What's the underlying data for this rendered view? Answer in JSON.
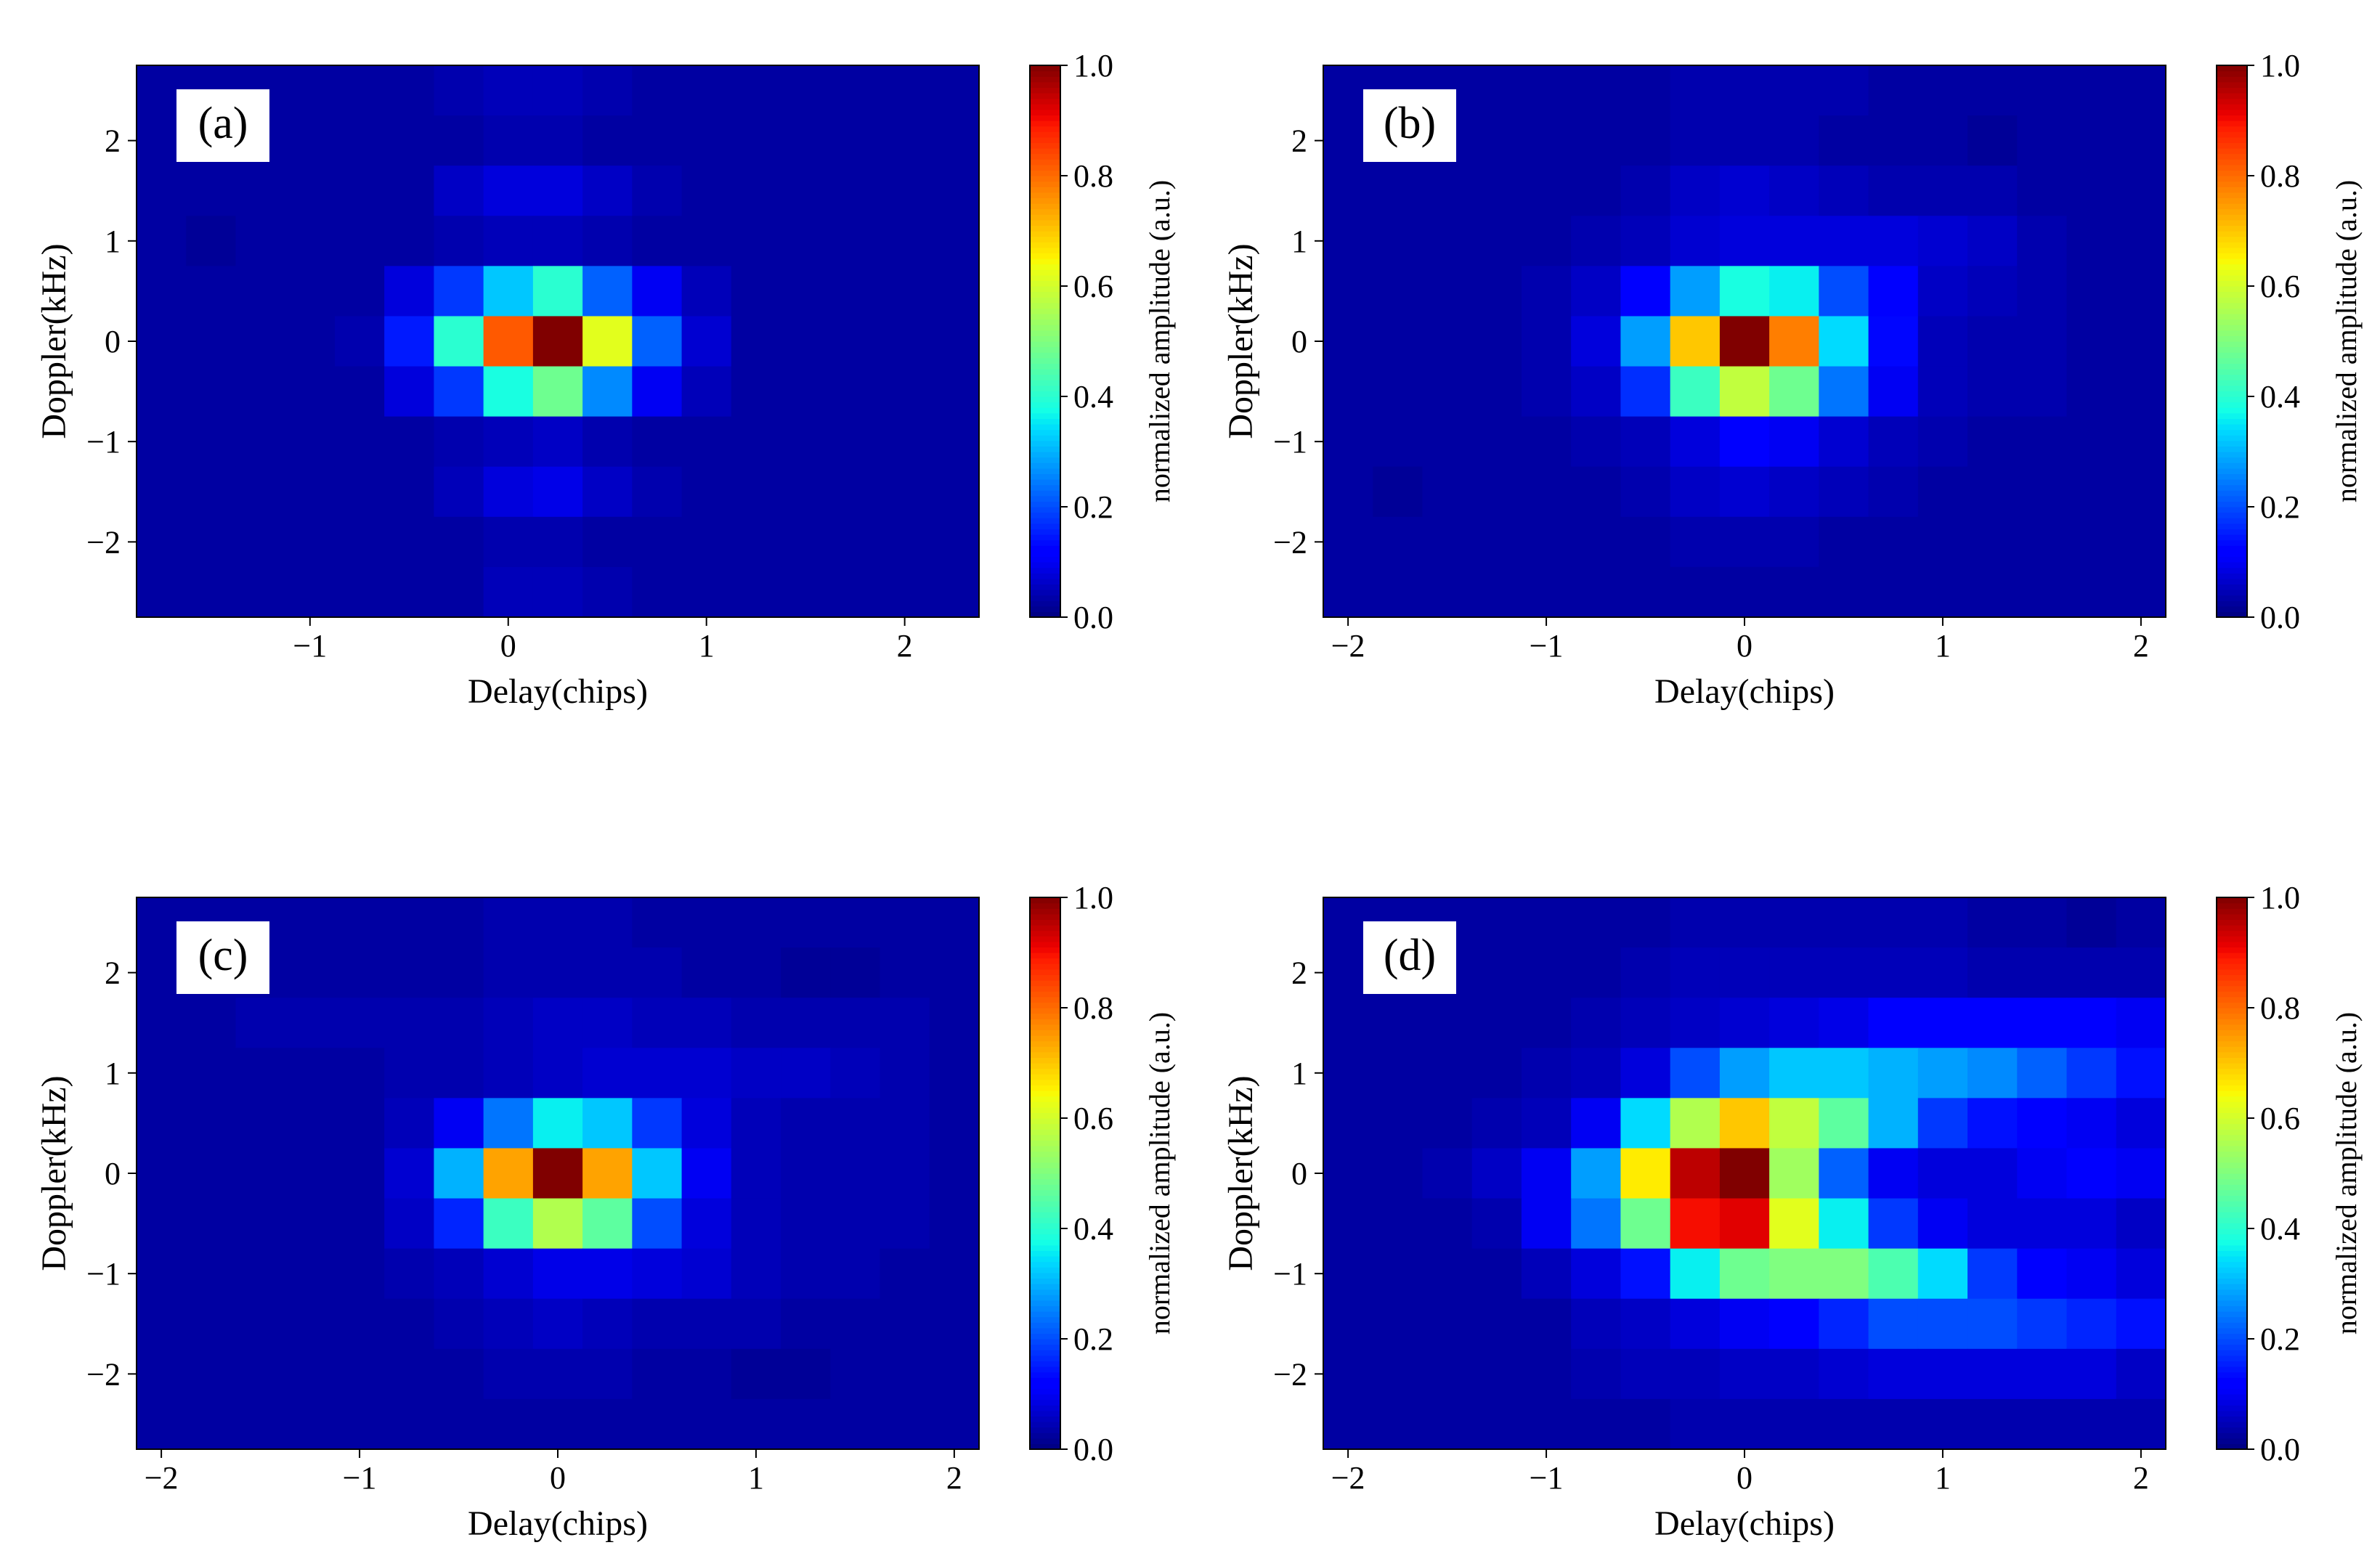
{
  "figure": {
    "panel_count": 4,
    "colormap": "jet"
  },
  "chart_data": [
    {
      "type": "heatmap",
      "label": "(a)",
      "xlabel": "Delay(chips)",
      "ylabel": "Doppler(kHz)",
      "colorbar_label": "normalized amplitude (a.u.)",
      "colorbar_range": [
        0.0,
        1.0
      ],
      "colorbar_ticks": [
        "0.0",
        "0.2",
        "0.4",
        "0.6",
        "0.8",
        "1.0"
      ],
      "xlim": [
        -1.875,
        2.375
      ],
      "ylim": [
        -2.75,
        2.75
      ],
      "xticks": [
        -1,
        0,
        1,
        2
      ],
      "xtick_labels": [
        "−1",
        "0",
        "1",
        "2"
      ],
      "yticks": [
        -2,
        -1,
        0,
        1,
        2
      ],
      "ytick_labels": [
        "−2",
        "−1",
        "0",
        "1",
        "2"
      ],
      "delay_bins": [
        -1.75,
        -1.5,
        -1.25,
        -1.0,
        -0.75,
        -0.5,
        -0.25,
        0.0,
        0.25,
        0.5,
        0.75,
        1.0,
        1.25,
        1.5,
        1.75,
        2.0,
        2.25
      ],
      "doppler_bins": [
        2.5,
        2.0,
        1.5,
        1.0,
        0.5,
        0.0,
        -0.5,
        -1.0,
        -1.5,
        -2.0,
        -2.5
      ],
      "values": [
        [
          0.03,
          0.03,
          0.03,
          0.03,
          0.03,
          0.03,
          0.04,
          0.05,
          0.05,
          0.04,
          0.03,
          0.03,
          0.03,
          0.03,
          0.03,
          0.03,
          0.03
        ],
        [
          0.03,
          0.03,
          0.03,
          0.03,
          0.03,
          0.03,
          0.03,
          0.04,
          0.04,
          0.03,
          0.03,
          0.03,
          0.03,
          0.03,
          0.03,
          0.03,
          0.03
        ],
        [
          0.03,
          0.03,
          0.03,
          0.03,
          0.03,
          0.03,
          0.06,
          0.08,
          0.08,
          0.06,
          0.04,
          0.03,
          0.03,
          0.03,
          0.03,
          0.03,
          0.03
        ],
        [
          0.03,
          0.02,
          0.03,
          0.03,
          0.03,
          0.03,
          0.04,
          0.05,
          0.05,
          0.04,
          0.03,
          0.03,
          0.03,
          0.03,
          0.03,
          0.03,
          0.03
        ],
        [
          0.03,
          0.03,
          0.03,
          0.03,
          0.03,
          0.08,
          0.18,
          0.32,
          0.4,
          0.22,
          0.1,
          0.05,
          0.03,
          0.03,
          0.03,
          0.03,
          0.03
        ],
        [
          0.03,
          0.03,
          0.03,
          0.03,
          0.04,
          0.15,
          0.4,
          0.82,
          1.0,
          0.62,
          0.22,
          0.07,
          0.03,
          0.03,
          0.03,
          0.03,
          0.03
        ],
        [
          0.03,
          0.03,
          0.03,
          0.03,
          0.03,
          0.08,
          0.18,
          0.38,
          0.48,
          0.26,
          0.1,
          0.05,
          0.03,
          0.03,
          0.03,
          0.03,
          0.03
        ],
        [
          0.03,
          0.03,
          0.03,
          0.03,
          0.03,
          0.03,
          0.04,
          0.05,
          0.06,
          0.04,
          0.03,
          0.03,
          0.03,
          0.03,
          0.03,
          0.03,
          0.03
        ],
        [
          0.03,
          0.03,
          0.03,
          0.03,
          0.03,
          0.03,
          0.05,
          0.08,
          0.09,
          0.06,
          0.04,
          0.03,
          0.03,
          0.03,
          0.03,
          0.03,
          0.03
        ],
        [
          0.03,
          0.03,
          0.03,
          0.03,
          0.03,
          0.03,
          0.03,
          0.04,
          0.04,
          0.03,
          0.03,
          0.03,
          0.03,
          0.03,
          0.03,
          0.03,
          0.03
        ],
        [
          0.03,
          0.03,
          0.03,
          0.03,
          0.03,
          0.03,
          0.03,
          0.05,
          0.05,
          0.04,
          0.03,
          0.03,
          0.03,
          0.03,
          0.03,
          0.03,
          0.03
        ]
      ]
    },
    {
      "type": "heatmap",
      "label": "(b)",
      "xlabel": "Delay(chips)",
      "ylabel": "Doppler(kHz)",
      "colorbar_label": "normalized amplitude (a.u.)",
      "colorbar_range": [
        0.0,
        1.0
      ],
      "colorbar_ticks": [
        "0.0",
        "0.2",
        "0.4",
        "0.6",
        "0.8",
        "1.0"
      ],
      "xlim": [
        -2.125,
        2.125
      ],
      "ylim": [
        -2.75,
        2.75
      ],
      "xticks": [
        -2,
        -1,
        0,
        1,
        2
      ],
      "xtick_labels": [
        "−2",
        "−1",
        "0",
        "1",
        "2"
      ],
      "yticks": [
        -2,
        -1,
        0,
        1,
        2
      ],
      "ytick_labels": [
        "−2",
        "−1",
        "0",
        "1",
        "2"
      ],
      "delay_bins": [
        -2.0,
        -1.75,
        -1.5,
        -1.25,
        -1.0,
        -0.75,
        -0.5,
        -0.25,
        0.0,
        0.25,
        0.5,
        0.75,
        1.0,
        1.25,
        1.5,
        1.75,
        2.0
      ],
      "doppler_bins": [
        2.5,
        2.0,
        1.5,
        1.0,
        0.5,
        0.0,
        -0.5,
        -1.0,
        -1.5,
        -2.0,
        -2.5
      ],
      "values": [
        [
          0.03,
          0.03,
          0.03,
          0.03,
          0.03,
          0.03,
          0.03,
          0.04,
          0.04,
          0.04,
          0.04,
          0.03,
          0.03,
          0.03,
          0.03,
          0.03,
          0.03
        ],
        [
          0.03,
          0.03,
          0.03,
          0.03,
          0.03,
          0.03,
          0.03,
          0.04,
          0.04,
          0.04,
          0.03,
          0.03,
          0.03,
          0.02,
          0.03,
          0.03,
          0.03
        ],
        [
          0.03,
          0.03,
          0.03,
          0.03,
          0.03,
          0.03,
          0.04,
          0.06,
          0.07,
          0.06,
          0.05,
          0.04,
          0.04,
          0.04,
          0.03,
          0.03,
          0.03
        ],
        [
          0.03,
          0.03,
          0.03,
          0.03,
          0.03,
          0.04,
          0.05,
          0.07,
          0.08,
          0.08,
          0.08,
          0.08,
          0.07,
          0.06,
          0.04,
          0.03,
          0.03
        ],
        [
          0.03,
          0.03,
          0.03,
          0.03,
          0.04,
          0.06,
          0.12,
          0.28,
          0.38,
          0.36,
          0.2,
          0.12,
          0.06,
          0.05,
          0.04,
          0.03,
          0.03
        ],
        [
          0.03,
          0.03,
          0.03,
          0.03,
          0.04,
          0.08,
          0.28,
          0.7,
          1.0,
          0.78,
          0.34,
          0.13,
          0.05,
          0.04,
          0.04,
          0.03,
          0.03
        ],
        [
          0.03,
          0.03,
          0.03,
          0.03,
          0.04,
          0.06,
          0.17,
          0.42,
          0.58,
          0.48,
          0.24,
          0.1,
          0.05,
          0.04,
          0.04,
          0.03,
          0.03
        ],
        [
          0.03,
          0.03,
          0.03,
          0.03,
          0.03,
          0.04,
          0.05,
          0.08,
          0.11,
          0.1,
          0.07,
          0.05,
          0.04,
          0.03,
          0.03,
          0.03,
          0.03
        ],
        [
          0.03,
          0.02,
          0.03,
          0.03,
          0.03,
          0.03,
          0.04,
          0.06,
          0.07,
          0.06,
          0.05,
          0.04,
          0.03,
          0.03,
          0.03,
          0.03,
          0.03
        ],
        [
          0.03,
          0.03,
          0.03,
          0.03,
          0.03,
          0.03,
          0.03,
          0.04,
          0.04,
          0.04,
          0.03,
          0.03,
          0.03,
          0.03,
          0.03,
          0.03,
          0.03
        ],
        [
          0.03,
          0.03,
          0.03,
          0.03,
          0.03,
          0.03,
          0.03,
          0.03,
          0.03,
          0.03,
          0.03,
          0.03,
          0.03,
          0.03,
          0.03,
          0.03,
          0.03
        ]
      ]
    },
    {
      "type": "heatmap",
      "label": "(c)",
      "xlabel": "Delay(chips)",
      "ylabel": "Doppler(kHz)",
      "colorbar_label": "normalized amplitude (a.u.)",
      "colorbar_range": [
        0.0,
        1.0
      ],
      "colorbar_ticks": [
        "0.0",
        "0.2",
        "0.4",
        "0.6",
        "0.8",
        "1.0"
      ],
      "xlim": [
        -2.125,
        2.125
      ],
      "ylim": [
        -2.75,
        2.75
      ],
      "xticks": [
        -2,
        -1,
        0,
        1,
        2
      ],
      "xtick_labels": [
        "−2",
        "−1",
        "0",
        "1",
        "2"
      ],
      "yticks": [
        -2,
        -1,
        0,
        1,
        2
      ],
      "ytick_labels": [
        "−2",
        "−1",
        "0",
        "1",
        "2"
      ],
      "delay_bins": [
        -2.0,
        -1.75,
        -1.5,
        -1.25,
        -1.0,
        -0.75,
        -0.5,
        -0.25,
        0.0,
        0.25,
        0.5,
        0.75,
        1.0,
        1.25,
        1.5,
        1.75,
        2.0
      ],
      "doppler_bins": [
        2.5,
        2.0,
        1.5,
        1.0,
        0.5,
        0.0,
        -0.5,
        -1.0,
        -1.5,
        -2.0,
        -2.5
      ],
      "values": [
        [
          0.03,
          0.03,
          0.03,
          0.03,
          0.03,
          0.03,
          0.03,
          0.04,
          0.04,
          0.04,
          0.03,
          0.03,
          0.03,
          0.03,
          0.03,
          0.03,
          0.03
        ],
        [
          0.03,
          0.03,
          0.03,
          0.03,
          0.03,
          0.03,
          0.03,
          0.04,
          0.04,
          0.04,
          0.04,
          0.03,
          0.03,
          0.02,
          0.02,
          0.03,
          0.03
        ],
        [
          0.03,
          0.03,
          0.04,
          0.04,
          0.04,
          0.04,
          0.04,
          0.05,
          0.06,
          0.06,
          0.05,
          0.05,
          0.04,
          0.04,
          0.04,
          0.04,
          0.03
        ],
        [
          0.03,
          0.03,
          0.03,
          0.03,
          0.03,
          0.04,
          0.04,
          0.05,
          0.06,
          0.07,
          0.07,
          0.07,
          0.06,
          0.06,
          0.05,
          0.04,
          0.03
        ],
        [
          0.03,
          0.03,
          0.03,
          0.03,
          0.03,
          0.05,
          0.1,
          0.24,
          0.36,
          0.32,
          0.18,
          0.08,
          0.05,
          0.04,
          0.04,
          0.04,
          0.03
        ],
        [
          0.03,
          0.03,
          0.03,
          0.03,
          0.03,
          0.07,
          0.3,
          0.74,
          1.0,
          0.74,
          0.32,
          0.1,
          0.05,
          0.04,
          0.04,
          0.04,
          0.03
        ],
        [
          0.03,
          0.03,
          0.03,
          0.03,
          0.03,
          0.06,
          0.16,
          0.42,
          0.56,
          0.46,
          0.2,
          0.08,
          0.05,
          0.04,
          0.04,
          0.04,
          0.03
        ],
        [
          0.03,
          0.03,
          0.03,
          0.03,
          0.03,
          0.04,
          0.05,
          0.07,
          0.09,
          0.09,
          0.08,
          0.07,
          0.05,
          0.04,
          0.04,
          0.03,
          0.03
        ],
        [
          0.03,
          0.03,
          0.03,
          0.03,
          0.03,
          0.03,
          0.04,
          0.05,
          0.06,
          0.05,
          0.04,
          0.04,
          0.04,
          0.03,
          0.03,
          0.03,
          0.03
        ],
        [
          0.03,
          0.03,
          0.03,
          0.03,
          0.03,
          0.03,
          0.03,
          0.04,
          0.04,
          0.04,
          0.03,
          0.03,
          0.02,
          0.02,
          0.03,
          0.03,
          0.03
        ],
        [
          0.03,
          0.03,
          0.03,
          0.03,
          0.03,
          0.03,
          0.03,
          0.03,
          0.03,
          0.03,
          0.03,
          0.03,
          0.03,
          0.03,
          0.03,
          0.03,
          0.03
        ]
      ]
    },
    {
      "type": "heatmap",
      "label": "(d)",
      "xlabel": "Delay(chips)",
      "ylabel": "Doppler(kHz)",
      "colorbar_label": "normalized amplitude (a.u.)",
      "colorbar_range": [
        0.0,
        1.0
      ],
      "colorbar_ticks": [
        "0.0",
        "0.2",
        "0.4",
        "0.6",
        "0.8",
        "1.0"
      ],
      "xlim": [
        -2.125,
        2.125
      ],
      "ylim": [
        -2.75,
        2.75
      ],
      "xticks": [
        -2,
        -1,
        0,
        1,
        2
      ],
      "xtick_labels": [
        "−2",
        "−1",
        "0",
        "1",
        "2"
      ],
      "yticks": [
        -2,
        -1,
        0,
        1,
        2
      ],
      "ytick_labels": [
        "−2",
        "−1",
        "0",
        "1",
        "2"
      ],
      "delay_bins": [
        -2.0,
        -1.75,
        -1.5,
        -1.25,
        -1.0,
        -0.75,
        -0.5,
        -0.25,
        0.0,
        0.25,
        0.5,
        0.75,
        1.0,
        1.25,
        1.5,
        1.75,
        2.0
      ],
      "doppler_bins": [
        2.5,
        2.0,
        1.5,
        1.0,
        0.5,
        0.0,
        -0.5,
        -1.0,
        -1.5,
        -2.0,
        -2.5
      ],
      "values": [
        [
          0.03,
          0.03,
          0.03,
          0.03,
          0.03,
          0.03,
          0.03,
          0.04,
          0.04,
          0.04,
          0.04,
          0.04,
          0.04,
          0.03,
          0.03,
          0.02,
          0.03
        ],
        [
          0.03,
          0.03,
          0.03,
          0.03,
          0.03,
          0.03,
          0.04,
          0.05,
          0.05,
          0.05,
          0.05,
          0.05,
          0.05,
          0.04,
          0.04,
          0.04,
          0.04
        ],
        [
          0.03,
          0.03,
          0.03,
          0.03,
          0.03,
          0.04,
          0.05,
          0.06,
          0.07,
          0.08,
          0.09,
          0.12,
          0.12,
          0.12,
          0.12,
          0.12,
          0.1
        ],
        [
          0.03,
          0.03,
          0.03,
          0.03,
          0.04,
          0.05,
          0.08,
          0.2,
          0.28,
          0.32,
          0.32,
          0.3,
          0.28,
          0.26,
          0.22,
          0.18,
          0.14
        ],
        [
          0.03,
          0.03,
          0.03,
          0.04,
          0.05,
          0.1,
          0.34,
          0.56,
          0.7,
          0.58,
          0.46,
          0.3,
          0.18,
          0.14,
          0.12,
          0.1,
          0.08
        ],
        [
          0.03,
          0.03,
          0.04,
          0.06,
          0.1,
          0.28,
          0.66,
          0.95,
          1.0,
          0.54,
          0.22,
          0.1,
          0.08,
          0.08,
          0.1,
          0.12,
          0.1
        ],
        [
          0.03,
          0.03,
          0.03,
          0.04,
          0.1,
          0.24,
          0.48,
          0.9,
          0.92,
          0.62,
          0.36,
          0.18,
          0.1,
          0.08,
          0.08,
          0.08,
          0.06
        ],
        [
          0.03,
          0.03,
          0.03,
          0.03,
          0.05,
          0.08,
          0.14,
          0.36,
          0.48,
          0.5,
          0.5,
          0.44,
          0.34,
          0.18,
          0.12,
          0.1,
          0.08
        ],
        [
          0.03,
          0.03,
          0.03,
          0.03,
          0.03,
          0.05,
          0.06,
          0.08,
          0.1,
          0.12,
          0.16,
          0.2,
          0.2,
          0.2,
          0.18,
          0.16,
          0.14
        ],
        [
          0.03,
          0.03,
          0.03,
          0.03,
          0.03,
          0.04,
          0.05,
          0.05,
          0.06,
          0.06,
          0.07,
          0.08,
          0.08,
          0.08,
          0.08,
          0.08,
          0.06
        ],
        [
          0.03,
          0.03,
          0.03,
          0.03,
          0.03,
          0.03,
          0.03,
          0.04,
          0.04,
          0.04,
          0.04,
          0.04,
          0.04,
          0.04,
          0.04,
          0.04,
          0.04
        ]
      ]
    }
  ]
}
